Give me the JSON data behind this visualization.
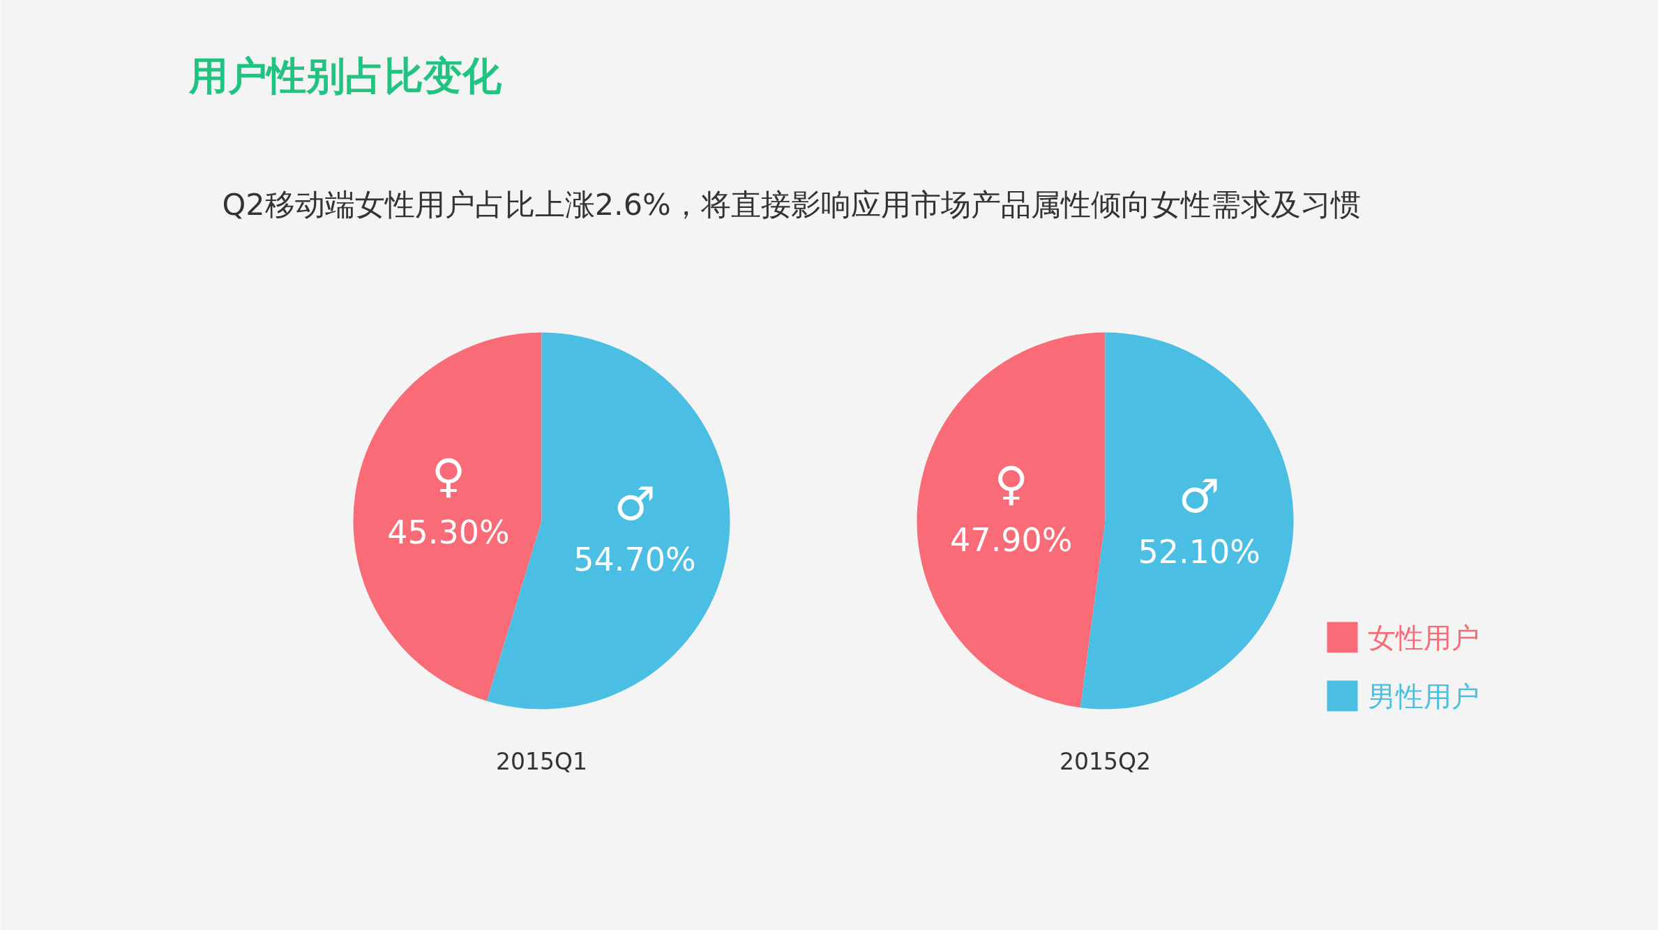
{
  "chart_data": [
    {
      "type": "pie",
      "title": "用户性别占比变化",
      "subtitle": "Q2移动端女性用户占比上涨2.6%，将直接影响应用市场产品属性倾向女性需求及习惯",
      "xlabel": "2015Q1",
      "categories": [
        "女性用户",
        "男性用户"
      ],
      "values": [
        45.3,
        54.7
      ],
      "colors": [
        "#f96b77",
        "#4bbfe3"
      ],
      "value_labels": [
        "♀\n45.30%",
        "♂\n54.70%"
      ],
      "legend": "bottom right"
    },
    {
      "type": "pie",
      "xlabel": "2015Q2",
      "categories": [
        null,
        null
      ],
      "values": [
        47.9,
        52.1
      ],
      "colors": [
        "#f96b77",
        "#4bbfe3"
      ],
      "value_labels": [
        "♀\n47.90%",
        "♂\n52.10%"
      ]
    }
  ]
}
